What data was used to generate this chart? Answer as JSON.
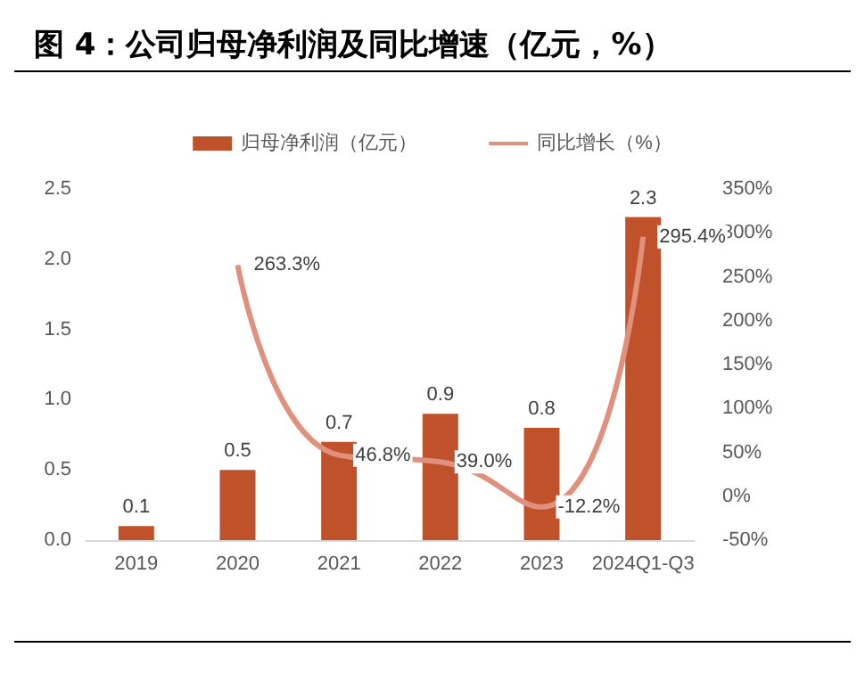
{
  "chart_data": {
    "type": "bar",
    "title": "图 4：公司归母净利润及同比增速（亿元，%）",
    "categories": [
      "2019",
      "2020",
      "2021",
      "2022",
      "2023",
      "2024Q1-Q3"
    ],
    "series": [
      {
        "name": "归母净利润（亿元）",
        "color": "#c0522b",
        "values": [
          0.1,
          0.5,
          0.7,
          0.9,
          0.8,
          2.3
        ],
        "value_labels": [
          "0.1",
          "0.5",
          "0.7",
          "0.9",
          "0.8",
          "2.3"
        ]
      },
      {
        "name": "同比增长（%）",
        "type": "line",
        "axis": "y2",
        "color": "#e0917e",
        "values": [
          null,
          263.3,
          46.8,
          39.0,
          -12.2,
          295.4
        ],
        "value_labels": [
          null,
          "263.3%",
          "46.8%",
          "39.0%",
          "-12.2%",
          "295.4%"
        ]
      }
    ],
    "ylim": [
      0,
      2.5
    ],
    "yticks": [
      {
        "value": 0,
        "label": "0.0"
      },
      0.5,
      {
        "value": 1,
        "label": "1.0"
      },
      1.5,
      {
        "value": 2,
        "label": "2.0"
      },
      2.5
    ],
    "y2lim": [
      -50,
      350
    ],
    "y2ticks": [
      {
        "value": -50,
        "label": "-50%"
      },
      {
        "value": 0,
        "label": "0%"
      },
      {
        "value": 50,
        "label": "50%"
      },
      {
        "value": 100,
        "label": "100%"
      },
      {
        "value": 150,
        "label": "150%"
      },
      {
        "value": 200,
        "label": "200%"
      },
      {
        "value": 250,
        "label": "250%"
      },
      {
        "value": 300,
        "label": "300%"
      },
      {
        "value": 350,
        "label": "350%"
      }
    ],
    "legend": "top",
    "grid": false,
    "marker": "none"
  }
}
